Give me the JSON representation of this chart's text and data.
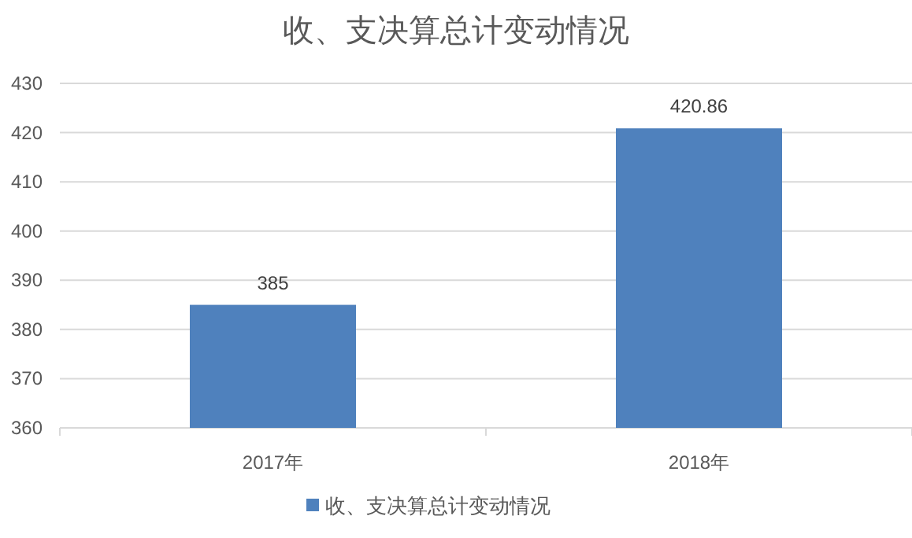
{
  "chart_data": {
    "type": "bar",
    "title": "收、支决算总计变动情况",
    "categories": [
      "2017年",
      "2018年"
    ],
    "series": [
      {
        "name": "收、支决算总计变动情况",
        "color": "#4f81bd",
        "values": [
          385,
          420.86
        ]
      }
    ],
    "ylim": [
      360,
      430
    ],
    "yticks": [
      360,
      370,
      380,
      390,
      400,
      410,
      420,
      430
    ],
    "grid": "y",
    "legend": "bottom",
    "data_labels": true
  }
}
